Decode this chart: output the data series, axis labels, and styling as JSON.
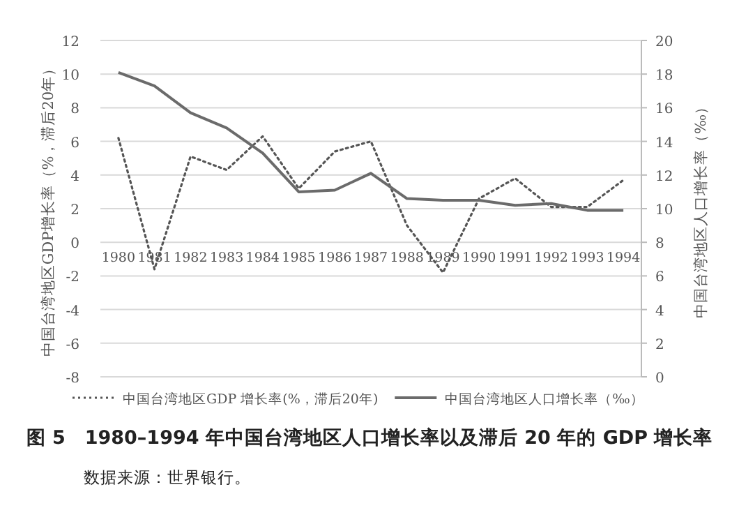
{
  "chart_data": {
    "type": "line",
    "title": "图 5　1980–1994 年中国台湾地区人口增长率以及滞后 20 年的 GDP 增长率",
    "categories": [
      "1980",
      "1981",
      "1982",
      "1983",
      "1984",
      "1985",
      "1986",
      "1987",
      "1988",
      "1989",
      "1990",
      "1991",
      "1992",
      "1993",
      "1994"
    ],
    "series": [
      {
        "name": "中国台湾地区GDP 增长率(%，滞后20年)",
        "color": "#555555",
        "line_style": "dotted",
        "values": [
          6.2,
          -1.6,
          5.1,
          4.3,
          6.3,
          3.2,
          5.4,
          6.0,
          1.0,
          -1.8,
          2.6,
          3.8,
          2.1,
          2.1,
          3.7
        ]
      },
      {
        "name": "中国台湾地区人口增长率（‰）",
        "color": "#6b6b6b",
        "line_style": "solid",
        "axis": "y2",
        "values": [
          18.1,
          17.3,
          15.7,
          14.8,
          13.3,
          11.0,
          11.1,
          12.1,
          10.6,
          10.5,
          10.5,
          10.2,
          10.3,
          9.9,
          9.9
        ]
      }
    ],
    "ylabel": "中国台湾地区GDP增长率（%，滞后20年）",
    "y2label": "中国台湾地区人口增长率（‰）",
    "ylim": [
      -8,
      12
    ],
    "yticks": [
      -8,
      -6,
      -4,
      -2,
      0,
      2,
      4,
      6,
      8,
      10,
      12
    ],
    "y2lim": [
      0,
      20
    ],
    "y2ticks": [
      0,
      2,
      4,
      6,
      8,
      10,
      12,
      14,
      16,
      18,
      20
    ],
    "grid": "y",
    "legend": "bottom",
    "marker": "none",
    "annotations": [
      "数据来源：世界银行。"
    ]
  }
}
